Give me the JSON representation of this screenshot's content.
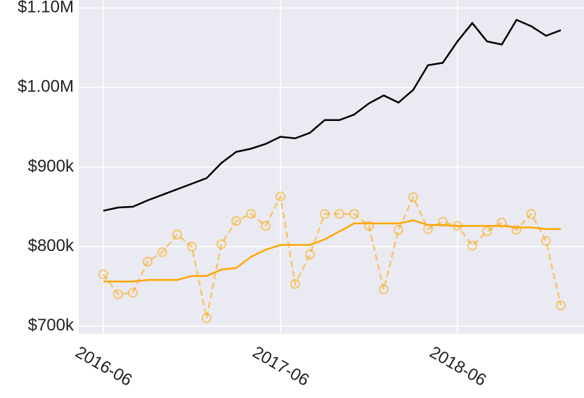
{
  "chart_data": {
    "type": "line",
    "x": [
      "2016-06",
      "2016-07",
      "2016-08",
      "2016-09",
      "2016-10",
      "2016-11",
      "2016-12",
      "2017-01",
      "2017-02",
      "2017-03",
      "2017-04",
      "2017-05",
      "2017-06",
      "2017-07",
      "2017-08",
      "2017-09",
      "2017-10",
      "2017-11",
      "2017-12",
      "2018-01",
      "2018-02",
      "2018-03",
      "2018-04",
      "2018-05",
      "2018-06",
      "2018-07",
      "2018-08",
      "2018-09",
      "2018-10",
      "2018-11",
      "2018-12",
      "2019-01"
    ],
    "series": [
      {
        "color": "#000000",
        "style": "solid",
        "values": [
          845000,
          849000,
          850000,
          858000,
          865000,
          872000,
          879000,
          886000,
          905000,
          919000,
          923000,
          929000,
          938000,
          936000,
          943000,
          959000,
          959000,
          966000,
          980000,
          990000,
          981000,
          997000,
          1028000,
          1031000,
          1058000,
          1081000,
          1058000,
          1054000,
          1085000,
          1077000,
          1065000,
          1072000
        ]
      },
      {
        "color": "#ffa500",
        "style": "dashed",
        "marker": "circle",
        "values": [
          765000,
          740000,
          742000,
          781000,
          793000,
          815000,
          800000,
          710000,
          803000,
          832000,
          841000,
          826000,
          863000,
          753000,
          790000,
          841000,
          841000,
          841000,
          826000,
          746000,
          821000,
          862000,
          822000,
          831000,
          826000,
          801000,
          819000,
          830000,
          821000,
          841000,
          807000,
          726000
        ]
      },
      {
        "color": "#ffa500",
        "style": "solid",
        "values": [
          756000,
          756000,
          756000,
          758000,
          758000,
          758000,
          763000,
          763000,
          771000,
          773000,
          787000,
          796000,
          802000,
          802000,
          802000,
          809000,
          819000,
          829000,
          829000,
          829000,
          829000,
          833000,
          827000,
          827000,
          826000,
          826000,
          826000,
          826000,
          824000,
          824000,
          822000,
          822000
        ]
      }
    ],
    "ylim": [
      690000,
      1110000
    ],
    "yticks": [
      {
        "value": 700000,
        "label": "$700k"
      },
      {
        "value": 800000,
        "label": "$800k"
      },
      {
        "value": 900000,
        "label": "$900k"
      },
      {
        "value": 1000000,
        "label": "$1.00M"
      },
      {
        "value": 1100000,
        "label": "$1.10M"
      }
    ],
    "xticks": [
      "2016-06",
      "2017-06",
      "2018-06"
    ],
    "grid": true
  }
}
